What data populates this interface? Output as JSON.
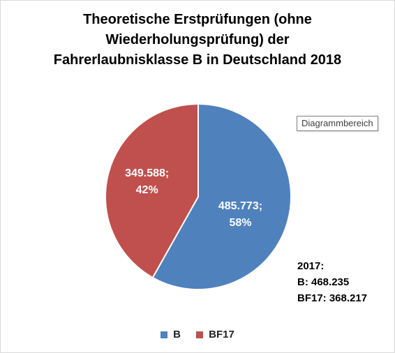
{
  "chart_data": {
    "type": "pie",
    "title_lines": [
      "Theoretische Erstprüfungen (ohne",
      "Wiederholungsprüfung) der",
      "Fahrerlaubnisklasse B in Deutschland 2018"
    ],
    "categories": [
      "B",
      "BF17"
    ],
    "values": [
      485773,
      349588
    ],
    "percent": [
      58,
      42
    ],
    "colors": [
      "#4f81bd",
      "#c0504d"
    ],
    "data_labels": [
      [
        "485.773;",
        "58%"
      ],
      [
        "349.588;",
        "42%"
      ]
    ],
    "legend_position": "bottom"
  },
  "tooltip": {
    "label": "Diagrammbereich"
  },
  "note": {
    "line1": "2017:",
    "line2": "B: 468.235",
    "line3": "BF17: 368.217"
  },
  "legend": [
    {
      "label": "B",
      "color": "#4f81bd"
    },
    {
      "label": "BF17",
      "color": "#c0504d"
    }
  ]
}
